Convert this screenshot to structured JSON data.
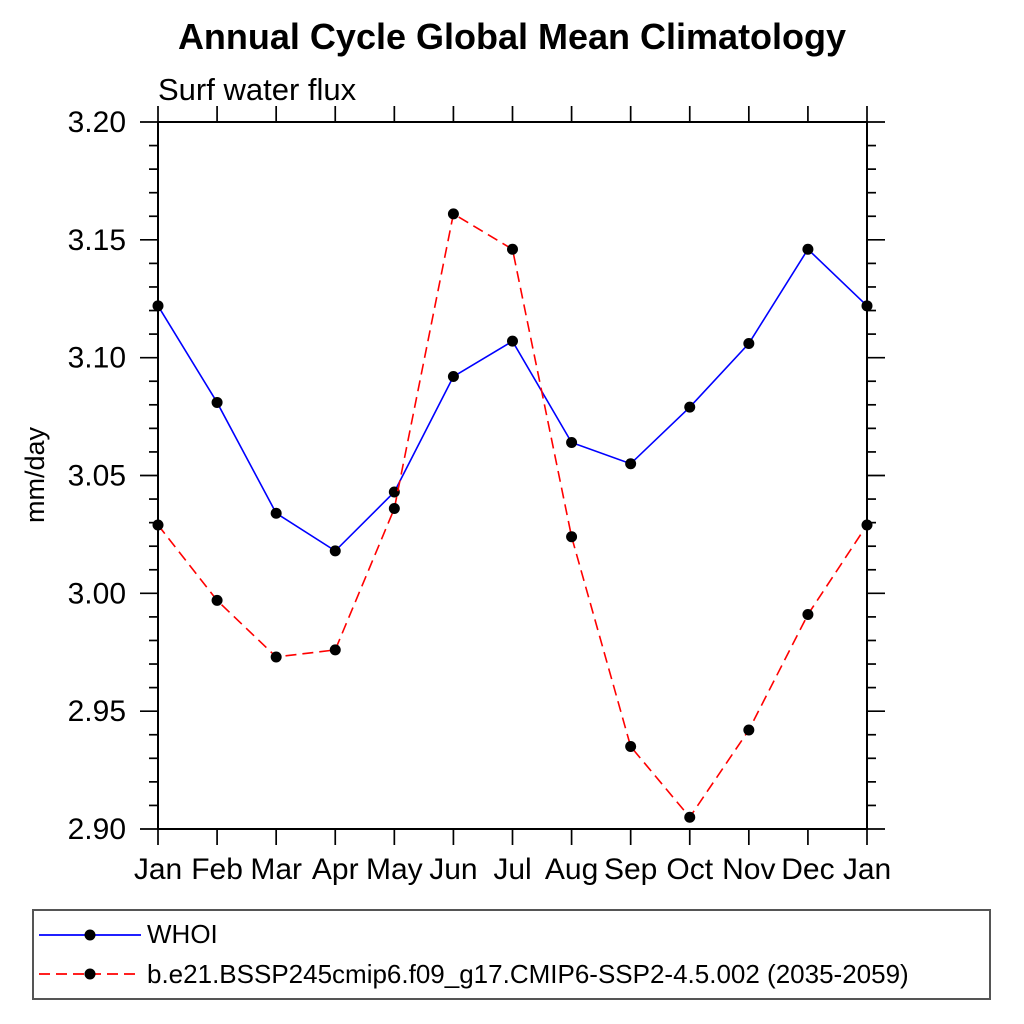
{
  "page": {
    "title": "Annual Cycle Global Mean Climatology"
  },
  "chart_data": {
    "type": "line",
    "title": "Annual Cycle Global Mean Climatology",
    "subtitle": "Surf water flux",
    "xlabel": "",
    "ylabel": "mm/day",
    "x_tick_labels": [
      "Jan",
      "Feb",
      "Mar",
      "Apr",
      "May",
      "Jun",
      "Jul",
      "Aug",
      "Sep",
      "Oct",
      "Nov",
      "Dec",
      "Jan"
    ],
    "y_tick_labels": [
      "2.90",
      "2.95",
      "3.00",
      "3.05",
      "3.10",
      "3.15",
      "3.20"
    ],
    "ylim": [
      2.9,
      3.2
    ],
    "y_major_step": 0.05,
    "y_minor_step": 0.01,
    "grid": false,
    "legend_position": "bottom",
    "axis_color": "#000000",
    "marker_color": "#000000",
    "series": [
      {
        "name": "WHOI",
        "color": "#0000ff",
        "line_style": "solid",
        "marker": "circle",
        "values": [
          3.122,
          3.081,
          3.034,
          3.018,
          3.043,
          3.092,
          3.107,
          3.064,
          3.055,
          3.079,
          3.106,
          3.146,
          3.122
        ]
      },
      {
        "name": "b.e21.BSSP245cmip6.f09_g17.CMIP6-SSP2-4.5.002 (2035-2059)",
        "color": "#ff0000",
        "line_style": "dashed",
        "marker": "circle",
        "values": [
          3.029,
          2.997,
          2.973,
          2.976,
          3.036,
          3.161,
          3.146,
          3.024,
          2.935,
          2.905,
          2.942,
          2.991,
          3.029
        ]
      }
    ]
  }
}
